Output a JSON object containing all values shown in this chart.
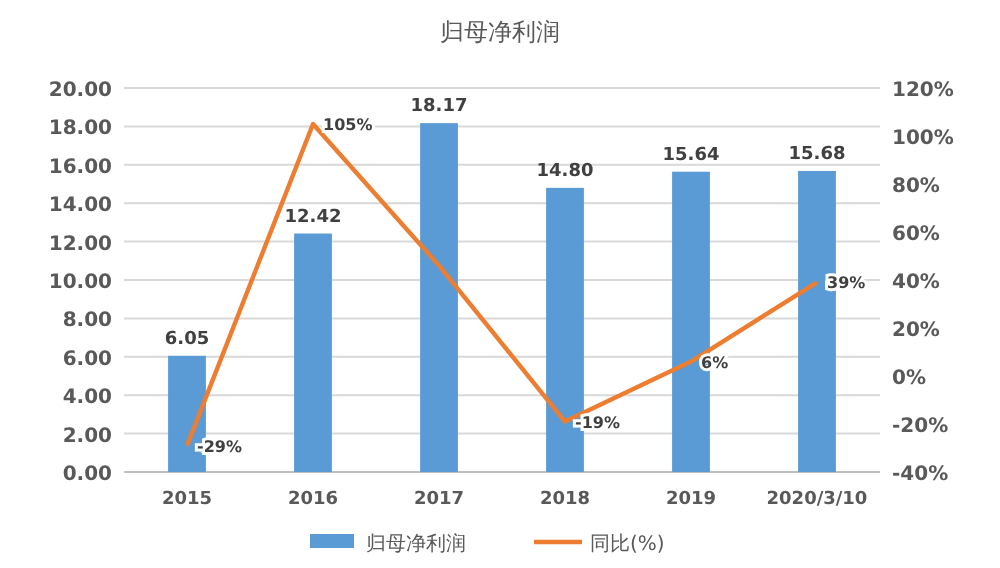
{
  "chart_data": {
    "type": "bar",
    "title": "归母净利润",
    "categories": [
      "2015",
      "2016",
      "2017",
      "2018",
      "2019",
      "2020/3/10"
    ],
    "series": [
      {
        "name": "归母净利润",
        "color": "#5b9bd5",
        "values": [
          6.05,
          12.42,
          18.17,
          14.8,
          15.64,
          15.68
        ],
        "value_labels": [
          "6.05",
          "12.42",
          "18.17",
          "14.80",
          "15.64",
          "15.68"
        ]
      },
      {
        "name": "同比(%)",
        "type": "line",
        "axis": "y2",
        "color": "#ed7d31",
        "values": [
          -29,
          105,
          46,
          -19,
          6,
          39
        ],
        "value_labels": [
          "-29%",
          "105%",
          null,
          "-19%",
          "6%",
          "39%"
        ]
      }
    ],
    "ylim": [
      0,
      20
    ],
    "yticks": [
      {
        "value": 0,
        "label": "0.00"
      },
      {
        "value": 2,
        "label": "2.00"
      },
      {
        "value": 4,
        "label": "4.00"
      },
      {
        "value": 6,
        "label": "6.00"
      },
      {
        "value": 8,
        "label": "8.00"
      },
      {
        "value": 10,
        "label": "10.00"
      },
      {
        "value": 12,
        "label": "12.00"
      },
      {
        "value": 14,
        "label": "14.00"
      },
      {
        "value": 16,
        "label": "16.00"
      },
      {
        "value": 18,
        "label": "18.00"
      },
      {
        "value": 20,
        "label": "20.00"
      }
    ],
    "y2lim": [
      -40,
      120
    ],
    "y2ticks": [
      {
        "value": -40,
        "label": "-40%"
      },
      {
        "value": -20,
        "label": "-20%"
      },
      {
        "value": 0,
        "label": "0%"
      },
      {
        "value": 20,
        "label": "20%"
      },
      {
        "value": 40,
        "label": "40%"
      },
      {
        "value": 60,
        "label": "60%"
      },
      {
        "value": 80,
        "label": "80%"
      },
      {
        "value": 100,
        "label": "100%"
      },
      {
        "value": 120,
        "label": "120%"
      }
    ],
    "grid": "y",
    "legend": "bottom",
    "marker": "none"
  }
}
